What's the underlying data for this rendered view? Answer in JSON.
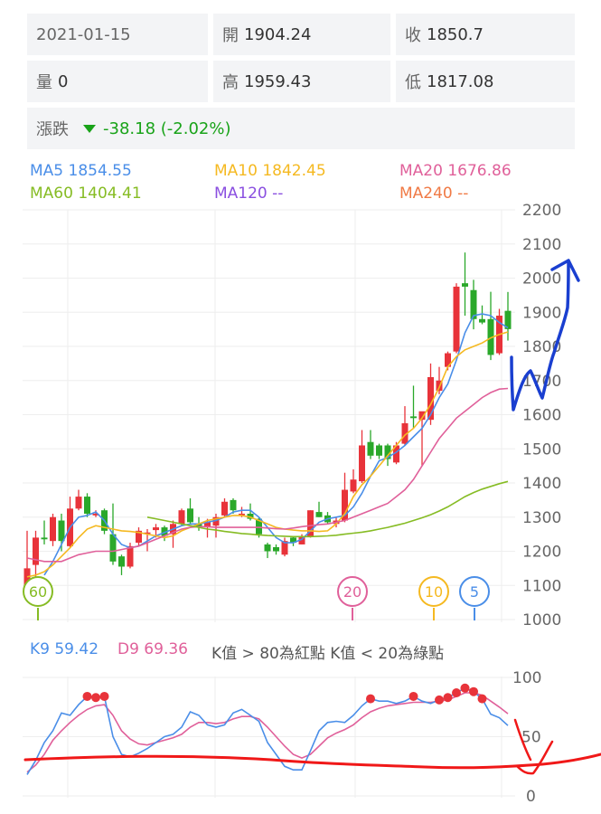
{
  "info": {
    "date": "2021-01-15",
    "open_label": "開",
    "open": "1904.24",
    "close_label": "收",
    "close": "1850.7",
    "volume_label": "量",
    "volume": "0",
    "high_label": "高",
    "high": "1959.43",
    "low_label": "低",
    "low": "1817.08",
    "change_label": "漲跌",
    "change": "-38.18 (-2.02%)",
    "change_icon": "triangle-down-icon"
  },
  "ma_legend": [
    {
      "text": "MA5 1854.55",
      "color": "#4a8ee8"
    },
    {
      "text": "MA10 1842.45",
      "color": "#f5b921"
    },
    {
      "text": "MA20 1676.86",
      "color": "#e0609a"
    },
    {
      "text": "MA60 1404.41",
      "color": "#86bc24"
    },
    {
      "text": "MA120 --",
      "color": "#8a4fe0"
    },
    {
      "text": "MA240 --",
      "color": "#f07a45"
    }
  ],
  "kd_legend": {
    "k": "K9 59.42",
    "d": "D9 69.36",
    "note": "K值 > 80為紅點 K值 < 20為綠點"
  },
  "colors": {
    "up": "#e8333a",
    "down": "#2aa82a",
    "ma5": "#4a8ee8",
    "ma10": "#f5b921",
    "ma20": "#e0609a",
    "ma60": "#86bc24",
    "k": "#4a8ee8",
    "d": "#e0609a",
    "hot_dot": "#e8333a"
  },
  "chart_data": [
    {
      "type": "candlestick",
      "ylim": [
        1000,
        2200
      ],
      "yticks": [
        "2200",
        "2100",
        "2000",
        "1900",
        "1800",
        "1700",
        "1600",
        "1500",
        "1400",
        "1300",
        "1200",
        "1100",
        "1000"
      ],
      "grid": true,
      "candles": [
        [
          1100,
          1260,
          1090,
          1150
        ],
        [
          1160,
          1260,
          1110,
          1240
        ],
        [
          1240,
          1290,
          1220,
          1235
        ],
        [
          1230,
          1310,
          1215,
          1300
        ],
        [
          1290,
          1310,
          1200,
          1230
        ],
        [
          1215,
          1360,
          1210,
          1325
        ],
        [
          1325,
          1380,
          1320,
          1360
        ],
        [
          1360,
          1370,
          1300,
          1310
        ],
        [
          1305,
          1320,
          1300,
          1310
        ],
        [
          1320,
          1325,
          1250,
          1260
        ],
        [
          1250,
          1340,
          1160,
          1170
        ],
        [
          1185,
          1190,
          1130,
          1155
        ],
        [
          1155,
          1225,
          1150,
          1215
        ],
        [
          1225,
          1270,
          1215,
          1260
        ],
        [
          1255,
          1265,
          1200,
          1255
        ],
        [
          1262,
          1280,
          1240,
          1270
        ],
        [
          1270,
          1275,
          1230,
          1245
        ],
        [
          1250,
          1290,
          1210,
          1280
        ],
        [
          1280,
          1325,
          1275,
          1320
        ],
        [
          1325,
          1355,
          1280,
          1285
        ],
        [
          1280,
          1300,
          1260,
          1270
        ],
        [
          1270,
          1295,
          1240,
          1285
        ],
        [
          1275,
          1310,
          1240,
          1300
        ],
        [
          1305,
          1355,
          1300,
          1345
        ],
        [
          1350,
          1355,
          1310,
          1320
        ],
        [
          1310,
          1330,
          1300,
          1310
        ],
        [
          1310,
          1340,
          1290,
          1295
        ],
        [
          1295,
          1300,
          1240,
          1250
        ],
        [
          1220,
          1225,
          1180,
          1200
        ],
        [
          1212,
          1220,
          1190,
          1200
        ],
        [
          1190,
          1240,
          1185,
          1230
        ],
        [
          1240,
          1245,
          1215,
          1225
        ],
        [
          1220,
          1250,
          1220,
          1245
        ],
        [
          1245,
          1320,
          1240,
          1320
        ],
        [
          1315,
          1345,
          1300,
          1300
        ],
        [
          1305,
          1315,
          1280,
          1285
        ],
        [
          1280,
          1300,
          1270,
          1290
        ],
        [
          1290,
          1430,
          1285,
          1380
        ],
        [
          1375,
          1440,
          1370,
          1410
        ],
        [
          1405,
          1555,
          1400,
          1510
        ],
        [
          1520,
          1555,
          1470,
          1480
        ],
        [
          1510,
          1515,
          1470,
          1480
        ],
        [
          1510,
          1515,
          1450,
          1470
        ],
        [
          1460,
          1520,
          1455,
          1510
        ],
        [
          1515,
          1625,
          1510,
          1575
        ],
        [
          1595,
          1685,
          1560,
          1590
        ],
        [
          1585,
          1600,
          1450,
          1610
        ],
        [
          1585,
          1750,
          1570,
          1710
        ],
        [
          1670,
          1740,
          1660,
          1700
        ],
        [
          1740,
          1785,
          1730,
          1780
        ],
        [
          1785,
          1985,
          1780,
          1975
        ],
        [
          1985,
          2075,
          1890,
          1975
        ],
        [
          1965,
          1995,
          1850,
          1880
        ],
        [
          1880,
          1920,
          1865,
          1870
        ],
        [
          1880,
          1960,
          1760,
          1775
        ],
        [
          1780,
          1910,
          1775,
          1890
        ],
        [
          1904.24,
          1959.43,
          1817.08,
          1850.7
        ]
      ],
      "candle_fields": [
        "open",
        "high",
        "low",
        "close"
      ],
      "series": [
        {
          "name": "MA5",
          "values": [
            null,
            null,
            1130,
            1170,
            1220,
            1270,
            1300,
            1305,
            1315,
            1290,
            1250,
            1220,
            1210,
            1215,
            1230,
            1245,
            1255,
            1265,
            1275,
            1280,
            1280,
            1285,
            1290,
            1300,
            1315,
            1320,
            1320,
            1300,
            1270,
            1240,
            1225,
            1225,
            1235,
            1260,
            1285,
            1295,
            1300,
            1305,
            1330,
            1370,
            1420,
            1465,
            1475,
            1490,
            1510,
            1535,
            1560,
            1600,
            1650,
            1690,
            1760,
            1840,
            1890,
            1895,
            1890,
            1870,
            1854.55
          ]
        },
        {
          "name": "MA10",
          "values": [
            1125,
            1130,
            1140,
            1160,
            1185,
            1210,
            1240,
            1265,
            1275,
            1270,
            1265,
            1260,
            1258,
            1255,
            1250,
            1245,
            1240,
            1245,
            1260,
            1270,
            1280,
            1290,
            1295,
            1300,
            1305,
            1305,
            1300,
            1290,
            1280,
            1270,
            1265,
            1262,
            1260,
            1260,
            1258,
            1260,
            1280,
            1310,
            1360,
            1395,
            1420,
            1450,
            1480,
            1510,
            1540,
            1560,
            1590,
            1630,
            1680,
            1740,
            1770,
            1790,
            1800,
            1810,
            1825,
            1835,
            1842.45
          ]
        },
        {
          "name": "MA20",
          "values": [
            1180,
            1175,
            1170,
            1170,
            1170,
            1180,
            1190,
            1195,
            1200,
            1200,
            1200,
            1205,
            1210,
            1215,
            1225,
            1235,
            1245,
            1255,
            1265,
            1270,
            1272,
            1272,
            1270,
            1270,
            1270,
            1270,
            1270,
            1270,
            1268,
            1266,
            1265,
            1268,
            1272,
            1275,
            1278,
            1280,
            1285,
            1290,
            1300,
            1310,
            1320,
            1330,
            1340,
            1360,
            1380,
            1410,
            1450,
            1490,
            1530,
            1560,
            1590,
            1610,
            1630,
            1650,
            1665,
            1675,
            1676.86
          ]
        },
        {
          "name": "MA60",
          "values": [
            null,
            null,
            null,
            null,
            null,
            null,
            null,
            null,
            null,
            null,
            null,
            null,
            null,
            null,
            1300,
            1295,
            1290,
            1285,
            1280,
            1275,
            1270,
            1265,
            1262,
            1258,
            1255,
            1252,
            1250,
            1248,
            1246,
            1245,
            1244,
            1243,
            1243,
            1243,
            1244,
            1245,
            1247,
            1250,
            1253,
            1256,
            1260,
            1265,
            1270,
            1276,
            1282,
            1290,
            1298,
            1307,
            1318,
            1330,
            1345,
            1360,
            1372,
            1382,
            1390,
            1398,
            1404.41
          ]
        }
      ],
      "ma_markers": [
        {
          "label": "60",
          "color": "#86bc24"
        },
        {
          "label": "20",
          "color": "#e0609a"
        },
        {
          "label": "10",
          "color": "#f5b921"
        },
        {
          "label": "5",
          "color": "#4a8ee8"
        }
      ]
    },
    {
      "type": "line",
      "ylim": [
        0,
        100
      ],
      "yticks": [
        "100",
        "50",
        "0"
      ],
      "grid": true,
      "series": [
        {
          "name": "K9",
          "values": [
            18,
            30,
            45,
            55,
            70,
            68,
            77,
            84,
            83,
            84,
            50,
            35,
            33,
            36,
            40,
            45,
            50,
            52,
            58,
            71,
            68,
            60,
            58,
            60,
            70,
            73,
            68,
            63,
            45,
            35,
            25,
            22,
            22,
            38,
            55,
            62,
            63,
            62,
            68,
            76,
            82,
            80,
            80,
            78,
            80,
            84,
            80,
            78,
            81,
            83,
            87,
            91,
            88,
            82,
            69,
            66,
            59.42
          ]
        },
        {
          "name": "D9",
          "values": [
            20,
            26,
            35,
            47,
            55,
            62,
            68,
            73,
            76,
            77,
            68,
            55,
            48,
            44,
            43,
            45,
            47,
            49,
            52,
            58,
            62,
            62,
            61,
            62,
            65,
            67,
            67,
            65,
            58,
            50,
            42,
            35,
            32,
            35,
            42,
            49,
            53,
            56,
            60,
            66,
            71,
            74,
            76,
            77,
            78,
            79,
            79,
            79,
            80,
            81,
            84,
            87,
            87,
            85,
            80,
            75,
            69.36
          ]
        }
      ],
      "dot_threshold": 80
    }
  ]
}
